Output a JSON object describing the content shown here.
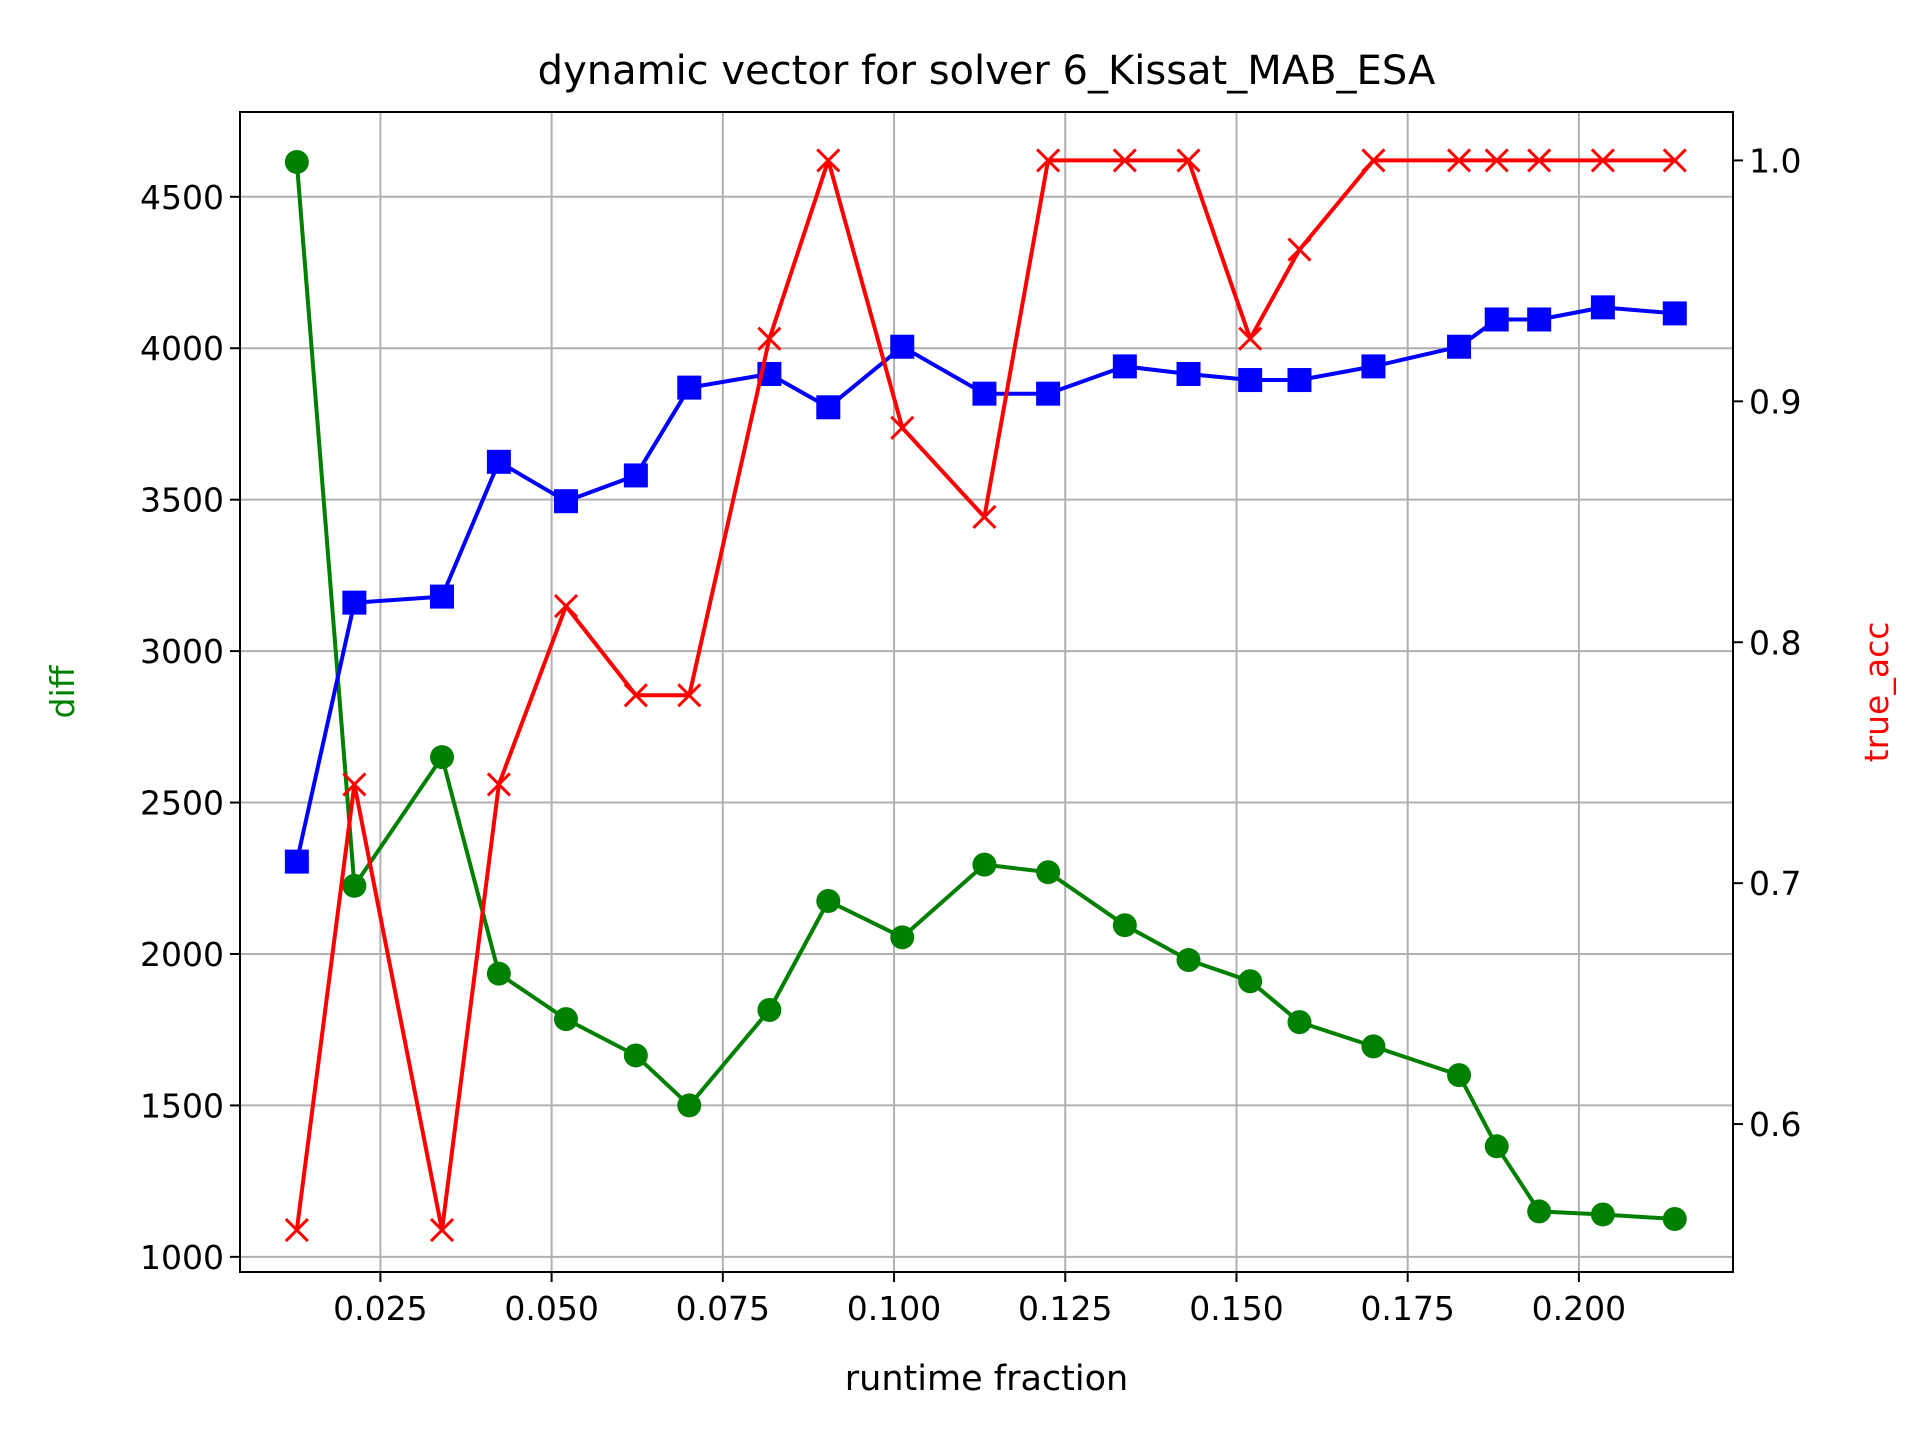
{
  "chart_data": {
    "type": "line",
    "title": "dynamic vector for solver 6_Kissat_MAB_ESA",
    "xlabel": "runtime fraction",
    "ylabel_left": "diff",
    "ylabel_right": "true_acc",
    "xlim": [
      0.0045,
      0.2225
    ],
    "ylim_left": [
      950,
      4780
    ],
    "ylim_right": [
      0.5386,
      1.0201
    ],
    "x_ticks": [
      0.025,
      0.05,
      0.075,
      0.1,
      0.125,
      0.15,
      0.175,
      0.2
    ],
    "x_tick_labels": [
      "0.025",
      "0.050",
      "0.075",
      "0.100",
      "0.125",
      "0.150",
      "0.175",
      "0.200"
    ],
    "y_left_ticks": [
      1000,
      1500,
      2000,
      2500,
      3000,
      3500,
      4000,
      4500
    ],
    "y_left_tick_labels": [
      "1000",
      "1500",
      "2000",
      "2500",
      "3000",
      "3500",
      "4000",
      "4500"
    ],
    "y_right_ticks": [
      0.6,
      0.7,
      0.8,
      0.9,
      1.0
    ],
    "y_right_tick_labels": [
      "0.6",
      "0.7",
      "0.8",
      "0.9",
      "1.0"
    ],
    "grid": true,
    "x": [
      0.0128,
      0.0212,
      0.034,
      0.0423,
      0.0521,
      0.0623,
      0.0701,
      0.0818,
      0.0904,
      0.1012,
      0.1132,
      0.1225,
      0.1337,
      0.143,
      0.152,
      0.1592,
      0.17,
      0.1825,
      0.188,
      0.1942,
      0.2035,
      0.214
    ],
    "series": [
      {
        "axis": "left",
        "color": "#008000",
        "marker": "circle",
        "values": [
          4615,
          2225,
          2650,
          1935,
          1785,
          1665,
          1500,
          1815,
          2175,
          2055,
          2295,
          2270,
          2095,
          1980,
          1910,
          1775,
          1695,
          1600,
          1365,
          1150,
          1140,
          1125
        ]
      },
      {
        "axis": "left",
        "color": "#0000ff",
        "marker": "square",
        "values": [
          2305,
          3160,
          3180,
          3625,
          3495,
          3580,
          3870,
          3915,
          3805,
          4005,
          3850,
          3850,
          3940,
          3915,
          3895,
          3895,
          3940,
          4005,
          4095,
          4095,
          4135,
          4115
        ]
      },
      {
        "axis": "right",
        "color": "#ff0000",
        "marker": "x",
        "values": [
          0.556,
          0.741,
          0.556,
          0.741,
          0.815,
          0.778,
          0.778,
          0.926,
          1.0,
          0.889,
          0.852,
          1.0,
          1.0,
          1.0,
          0.926,
          0.963,
          1.0,
          1.0,
          1.0,
          1.0,
          1.0,
          1.0
        ]
      }
    ]
  }
}
